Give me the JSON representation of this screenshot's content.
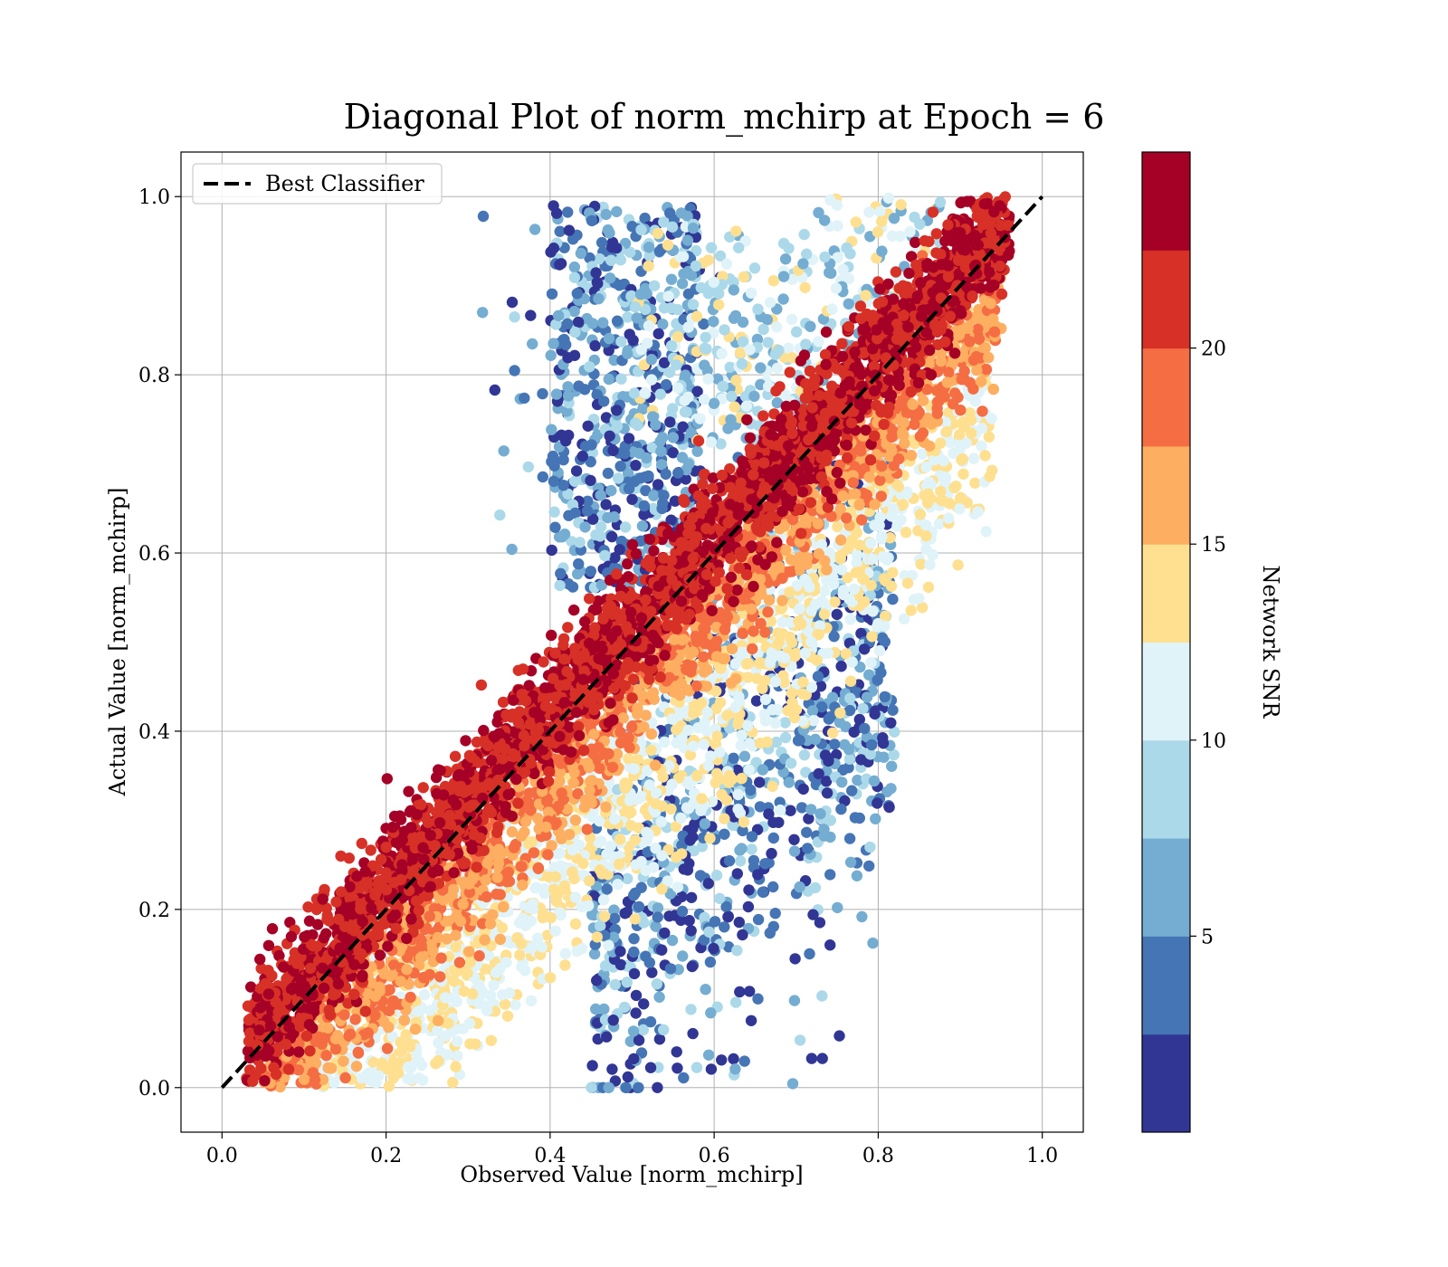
{
  "chart_data": {
    "type": "scatter",
    "title": "Diagonal Plot of norm_mchirp at Epoch = 6",
    "xlabel": "Observed Value [norm_mchirp]",
    "ylabel": "Actual Value [norm_mchirp]",
    "xlim": [
      -0.05,
      1.05
    ],
    "ylim": [
      -0.05,
      1.05
    ],
    "xticks": [
      "0.0",
      "0.2",
      "0.4",
      "0.6",
      "0.8",
      "1.0"
    ],
    "yticks": [
      "0.0",
      "0.2",
      "0.4",
      "0.6",
      "0.8",
      "1.0"
    ],
    "grid": true,
    "legend": {
      "position": "top-left",
      "entries": [
        {
          "label": "Best Classifier",
          "style": "black dashed line"
        }
      ]
    },
    "reference_line": {
      "name": "Best Classifier",
      "x": [
        0.0,
        1.0
      ],
      "y": [
        0.0,
        1.0
      ],
      "color": "#000000",
      "dash": "dashed"
    },
    "colorbar": {
      "label": "Network SNR",
      "colormap": "RdYlBu_r",
      "range": [
        0.0,
        25.0
      ],
      "ticks": [
        "5",
        "10",
        "15",
        "20"
      ],
      "tick_values": [
        5,
        10,
        15,
        20
      ],
      "levels": 10,
      "colors": [
        "#313695",
        "#4575b4",
        "#74add1",
        "#abd9e9",
        "#e0f3f8",
        "#fee090",
        "#fdae61",
        "#f46d43",
        "#d73027",
        "#a50026"
      ]
    },
    "point_bands": [
      {
        "snr_range": [
          20,
          25
        ],
        "description": "dense band tightly around the diagonal",
        "center_offset": 0.0,
        "spread": 0.035,
        "x_range": [
          0.03,
          0.96
        ]
      },
      {
        "snr_range": [
          15,
          20
        ],
        "description": "just below/right of the diagonal",
        "center_offset": -0.07,
        "spread": 0.035,
        "x_range": [
          0.05,
          0.95
        ]
      },
      {
        "snr_range": [
          10,
          15
        ],
        "description": "further below the diagonal",
        "center_offset": -0.17,
        "spread": 0.06,
        "x_range": [
          0.1,
          0.93
        ]
      },
      {
        "snr_range": [
          5,
          10
        ],
        "description": "wide spread, both above (x 0.4-0.8, y 0.6-1.0) and far below the diagonal",
        "center_offset": -0.3,
        "spread": 0.1,
        "x_range": [
          0.3,
          0.85
        ]
      },
      {
        "snr_range": [
          0,
          5
        ],
        "description": "cluster above diagonal near x 0.4-0.55, y 0.55-0.99 and scatter below at x 0.5-0.8",
        "center_offset": 0.3,
        "spread": 0.12,
        "x_range": [
          0.3,
          0.8
        ]
      }
    ],
    "marker": "filled circle"
  }
}
